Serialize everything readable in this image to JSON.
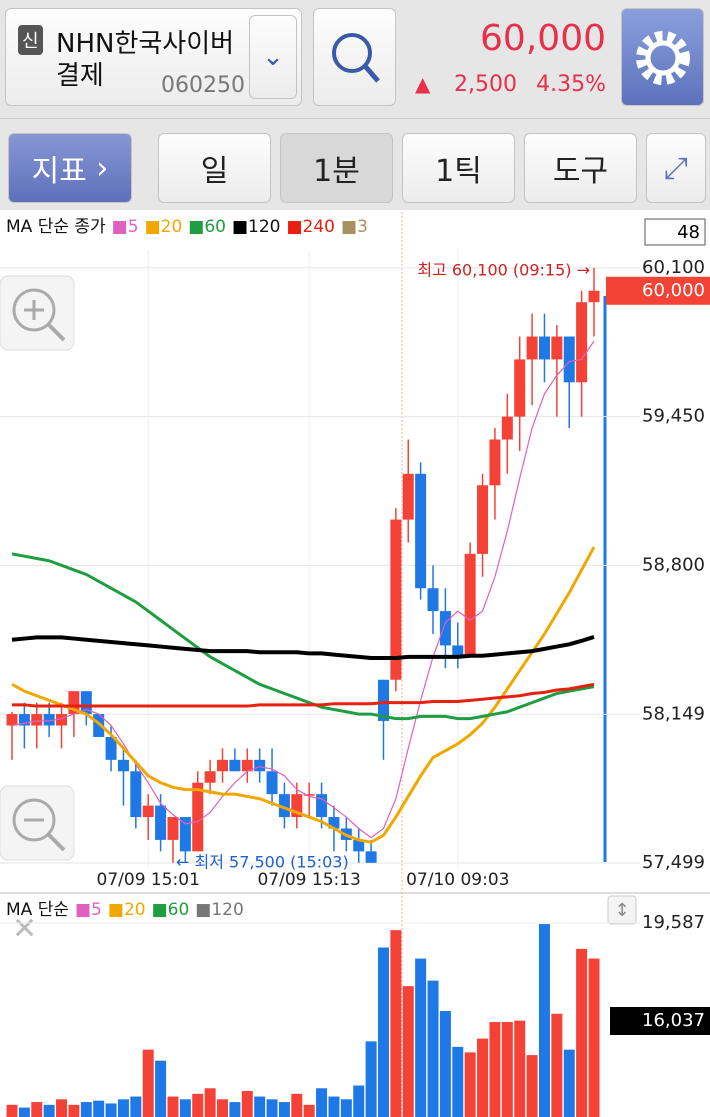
{
  "header": {
    "badge": "신",
    "name_line1": "NHN한국사이버",
    "name_line2": "결제",
    "code": "060250",
    "price": "60,000",
    "change_arrow": "▲",
    "change": "2,500",
    "change_pct": "4.35%"
  },
  "toolbar": {
    "indicator": "지표",
    "period_day": "일",
    "period_minute": "1분",
    "period_tick": "1틱",
    "tools": "도구"
  },
  "chart_data": [
    {
      "type": "candlestick",
      "legend_title": "MA 단순 종가",
      "count_box": "48",
      "categories": [
        null,
        null,
        null,
        null,
        null,
        null,
        null,
        null,
        null,
        null,
        null,
        "07/09 15:01",
        null,
        null,
        null,
        null,
        null,
        null,
        null,
        null,
        null,
        null,
        null,
        null,
        "07/09 15:13",
        null,
        null,
        null,
        null,
        null,
        null,
        null,
        null,
        null,
        null,
        null,
        "07/10 09:03",
        null,
        null,
        null,
        null,
        null,
        null,
        null,
        null,
        null,
        null,
        null
      ],
      "open": [
        58100,
        58150,
        58100,
        58150,
        58100,
        58150,
        58250,
        58150,
        58050,
        57950,
        57900,
        57700,
        57750,
        57600,
        57700,
        57550,
        57850,
        57900,
        57950,
        57900,
        57950,
        57900,
        57800,
        57700,
        57800,
        57800,
        57700,
        57650,
        57600,
        57550,
        58300,
        58300,
        59000,
        59200,
        58700,
        58600,
        58450,
        58400,
        58850,
        59150,
        59350,
        59450,
        59700,
        59800,
        59700,
        59800,
        59600,
        59950
      ],
      "high": [
        58160,
        58200,
        58200,
        58200,
        58200,
        58250,
        58250,
        58150,
        58100,
        58000,
        57950,
        57800,
        57800,
        57700,
        57700,
        57900,
        57950,
        58000,
        58000,
        58000,
        58000,
        58000,
        57850,
        57850,
        57850,
        57850,
        57750,
        57700,
        57650,
        57600,
        58300,
        59050,
        59350,
        59250,
        58800,
        58700,
        58550,
        58900,
        59200,
        59400,
        59550,
        59800,
        59900,
        59900,
        59850,
        59800,
        60000,
        60100
      ],
      "low": [
        57950,
        58000,
        58000,
        58050,
        58000,
        58050,
        58100,
        58050,
        57900,
        57750,
        57650,
        57600,
        57550,
        57500,
        57500,
        57550,
        57800,
        57850,
        57900,
        57850,
        57850,
        57750,
        57650,
        57650,
        57700,
        57650,
        57550,
        57550,
        57500,
        57500,
        57950,
        58250,
        58900,
        58650,
        58500,
        58350,
        58350,
        58400,
        58750,
        59000,
        59200,
        59300,
        59500,
        59600,
        59450,
        59400,
        59450,
        59800
      ],
      "close": [
        58150,
        58100,
        58150,
        58100,
        58150,
        58250,
        58150,
        58050,
        57950,
        57900,
        57700,
        57750,
        57600,
        57700,
        57550,
        57850,
        57900,
        57950,
        57900,
        57950,
        57900,
        57800,
        57700,
        57800,
        57800,
        57700,
        57650,
        57600,
        57550,
        57500,
        58120,
        59000,
        59200,
        58700,
        58600,
        58450,
        58400,
        58850,
        59150,
        59350,
        59450,
        59700,
        59800,
        59700,
        59800,
        59600,
        59950,
        60000
      ],
      "up_color": "#f44336",
      "down_color": "#1e78e6",
      "series": [
        {
          "name": "5",
          "color": "#e060c0",
          "values": [
            58100,
            58110,
            58120,
            58120,
            58130,
            58150,
            58170,
            58150,
            58100,
            58020,
            57930,
            57850,
            57760,
            57710,
            57670,
            57680,
            57720,
            57790,
            57850,
            57900,
            57920,
            57910,
            57880,
            57820,
            57790,
            57780,
            57740,
            57700,
            57650,
            57610,
            57650,
            57780,
            58000,
            58210,
            58400,
            58550,
            58600,
            58560,
            58600,
            58750,
            58950,
            59180,
            59400,
            59550,
            59630,
            59690,
            59700,
            59780
          ]
        },
        {
          "name": "20",
          "color": "#f0a800",
          "values": [
            58280,
            58250,
            58230,
            58210,
            58190,
            58170,
            58150,
            58110,
            58060,
            58000,
            57940,
            57880,
            57850,
            57830,
            57820,
            57820,
            57810,
            57800,
            57800,
            57790,
            57780,
            57760,
            57740,
            57720,
            57700,
            57680,
            57650,
            57620,
            57600,
            57590,
            57620,
            57700,
            57790,
            57880,
            57960,
            57990,
            58020,
            58060,
            58110,
            58180,
            58260,
            58340,
            58420,
            58500,
            58590,
            58680,
            58780,
            58880
          ]
        },
        {
          "name": "60",
          "color": "#1e9e40",
          "values": [
            58850,
            58840,
            58830,
            58820,
            58800,
            58780,
            58760,
            58730,
            58700,
            58670,
            58640,
            58600,
            58560,
            58520,
            58480,
            58440,
            58400,
            58370,
            58340,
            58310,
            58280,
            58260,
            58240,
            58220,
            58200,
            58180,
            58170,
            58160,
            58150,
            58150,
            58140,
            58130,
            58130,
            58140,
            58140,
            58140,
            58130,
            58130,
            58140,
            58150,
            58160,
            58180,
            58200,
            58220,
            58240,
            58250,
            58260,
            58270
          ]
        },
        {
          "name": "120",
          "color": "#000000",
          "values": [
            58475,
            58480,
            58485,
            58485,
            58485,
            58480,
            58475,
            58470,
            58465,
            58460,
            58455,
            58450,
            58445,
            58440,
            58435,
            58430,
            58425,
            58425,
            58425,
            58425,
            58420,
            58420,
            58420,
            58420,
            58415,
            58415,
            58410,
            58405,
            58400,
            58395,
            58395,
            58395,
            58400,
            58400,
            58400,
            58400,
            58400,
            58405,
            58405,
            58410,
            58415,
            58420,
            58425,
            58435,
            58445,
            58455,
            58470,
            58487
          ]
        },
        {
          "name": "240",
          "color": "#e82010",
          "values": [
            58190,
            58190,
            58185,
            58185,
            58185,
            58185,
            58185,
            58185,
            58185,
            58185,
            58185,
            58185,
            58185,
            58185,
            58185,
            58185,
            58185,
            58185,
            58185,
            58185,
            58190,
            58190,
            58190,
            58190,
            58190,
            58190,
            58195,
            58195,
            58195,
            58195,
            58200,
            58200,
            58200,
            58200,
            58205,
            58205,
            58205,
            58210,
            58215,
            58220,
            58225,
            58230,
            58240,
            58245,
            58255,
            58260,
            58270,
            58280
          ]
        }
      ],
      "legend_extra": {
        "name": "3",
        "color": "#a89060"
      },
      "ylim": [
        57368,
        60353
      ],
      "yticks": [
        {
          "value": 60100,
          "label": "60,100"
        },
        {
          "value": 59450,
          "label": "59,450"
        },
        {
          "value": 58800,
          "label": "58,800"
        },
        {
          "value": 58149,
          "label": "58,149"
        },
        {
          "value": 57499,
          "label": "57,499"
        }
      ],
      "current_price": {
        "value": 60000,
        "label": "60,000"
      },
      "annotations": {
        "high": "최고 60,100 (09:15) →",
        "low": "← 최저 57,500 (15:03)"
      }
    },
    {
      "type": "bar",
      "legend_title": "MA 단순",
      "ma_legend": [
        {
          "name": "5",
          "color": "#e060c0"
        },
        {
          "name": "20",
          "color": "#f0a800"
        },
        {
          "name": "60",
          "color": "#1e9e40"
        },
        {
          "name": "120",
          "color": "#777777"
        }
      ],
      "values": [
        13000,
        12900,
        13100,
        13000,
        13200,
        13000,
        13100,
        13150,
        13050,
        13200,
        13300,
        15000,
        14600,
        13300,
        13200,
        13400,
        13600,
        13200,
        13100,
        13500,
        13300,
        13200,
        13100,
        13400,
        13000,
        13600,
        13300,
        13200,
        13700,
        15300,
        18700,
        19330,
        17300,
        18300,
        17500,
        16400,
        15100,
        14900,
        15400,
        16000,
        16000,
        16050,
        14800,
        19550,
        16300,
        15000,
        18650,
        18300
      ],
      "ylim": [
        12559,
        20675
      ],
      "yticks": [
        {
          "value": 19587,
          "label": "19,587"
        }
      ],
      "current": {
        "value": 16037,
        "label": "16,037"
      }
    }
  ]
}
